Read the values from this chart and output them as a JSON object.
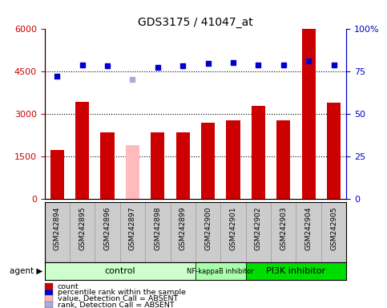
{
  "title": "GDS3175 / 41047_at",
  "categories": [
    "GSM242894",
    "GSM242895",
    "GSM242896",
    "GSM242897",
    "GSM242898",
    "GSM242899",
    "GSM242900",
    "GSM242901",
    "GSM242902",
    "GSM242903",
    "GSM242904",
    "GSM242905"
  ],
  "bar_values": [
    1750,
    3450,
    2350,
    1900,
    2350,
    2350,
    2700,
    2800,
    3300,
    2800,
    6000,
    3400
  ],
  "bar_colors": [
    "#cc0000",
    "#cc0000",
    "#cc0000",
    "#ffbbbb",
    "#cc0000",
    "#cc0000",
    "#cc0000",
    "#cc0000",
    "#cc0000",
    "#cc0000",
    "#cc0000",
    "#cc0000"
  ],
  "dot_values": [
    72.5,
    79.0,
    78.5,
    70.5,
    77.5,
    78.5,
    80.0,
    80.5,
    79.0,
    79.0,
    81.5,
    79.0
  ],
  "dot_colors": [
    "#0000cc",
    "#0000cc",
    "#0000cc",
    "#aaaadd",
    "#0000cc",
    "#0000cc",
    "#0000cc",
    "#0000cc",
    "#0000cc",
    "#0000cc",
    "#0000cc",
    "#0000cc"
  ],
  "ylim_left": [
    0,
    6000
  ],
  "ylim_right": [
    0,
    100
  ],
  "yticks_left": [
    0,
    1500,
    3000,
    4500,
    6000
  ],
  "yticks_right": [
    0,
    25,
    50,
    75,
    100
  ],
  "ytick_labels_right": [
    "0",
    "25",
    "50",
    "75",
    "100%"
  ],
  "gridlines": [
    1500,
    3000,
    4500
  ],
  "group_boundaries": [
    {
      "label": "control",
      "start": 0,
      "end": 5,
      "color": "#ccffcc"
    },
    {
      "label": "NF-kappaB inhibitor",
      "start": 6,
      "end": 7,
      "color": "#aaffaa"
    },
    {
      "label": "PI3K inhibitor",
      "start": 8,
      "end": 11,
      "color": "#00dd00"
    }
  ],
  "legend_items": [
    {
      "label": "count",
      "color": "#cc0000"
    },
    {
      "label": "percentile rank within the sample",
      "color": "#0000cc"
    },
    {
      "label": "value, Detection Call = ABSENT",
      "color": "#ffbbbb"
    },
    {
      "label": "rank, Detection Call = ABSENT",
      "color": "#aaaadd"
    }
  ],
  "left_axis_color": "#cc0000",
  "right_axis_color": "#0000cc",
  "bar_width": 0.55,
  "tick_bg_color": "#cccccc",
  "tick_sep_color": "#999999"
}
